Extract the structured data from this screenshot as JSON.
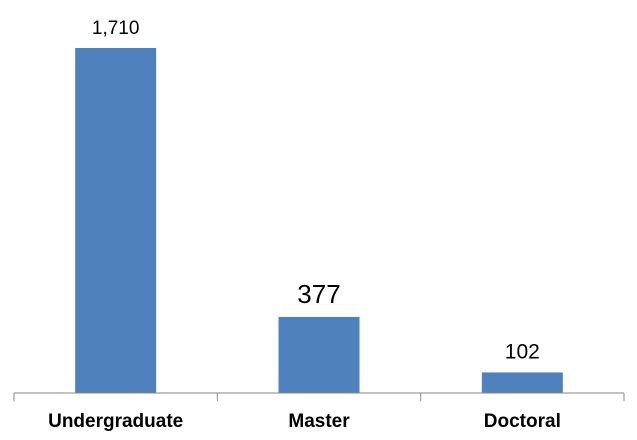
{
  "chart_data": {
    "type": "bar",
    "title": "",
    "xlabel": "",
    "ylabel": "",
    "categories": [
      "Undergraduate",
      "Master",
      "Doctoral"
    ],
    "values": [
      1710,
      377,
      102
    ],
    "data_labels": [
      "1,710",
      "377",
      "102"
    ],
    "ylim": [
      0,
      1710
    ],
    "grid": false,
    "legend": "none",
    "bar_color": "#4F81BD"
  }
}
